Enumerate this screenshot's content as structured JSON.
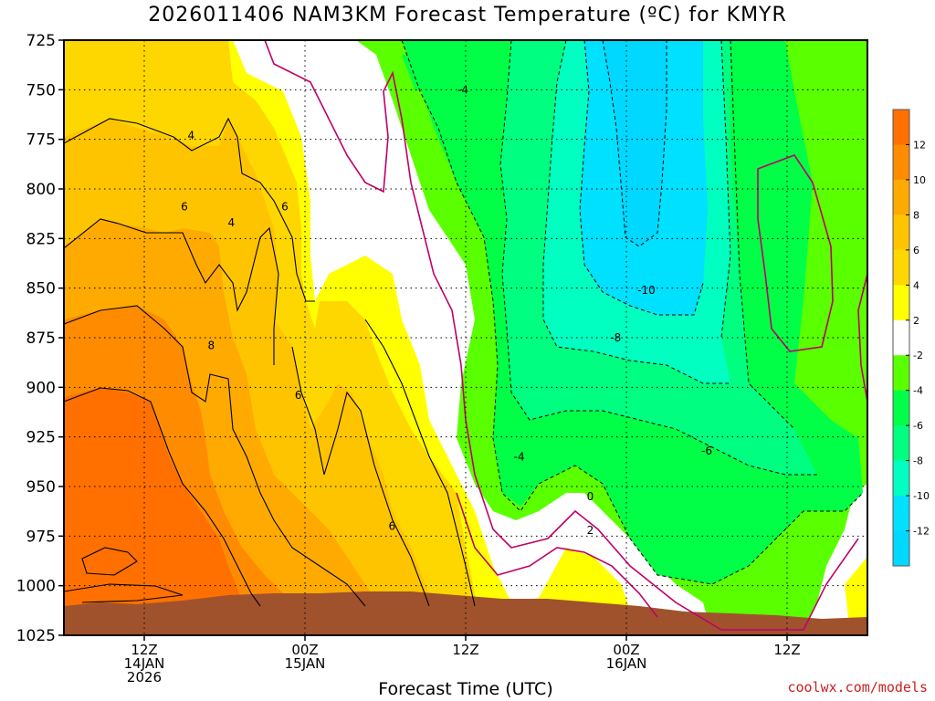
{
  "chart_data": {
    "type": "filled-contour",
    "title": "2026011406 NAM3KM Forecast Temperature (ºC) for KMYR",
    "xlabel": "Forecast Time (UTC)",
    "ylabel": "",
    "y_ticks": [
      "725",
      "750",
      "775",
      "800",
      "825",
      "850",
      "875",
      "900",
      "925",
      "950",
      "975",
      "1000",
      "1025"
    ],
    "y_range_hPa": [
      725,
      1025
    ],
    "x_ticks": [
      {
        "hour": 12,
        "lines": [
          "12Z",
          "14JAN",
          "2026"
        ]
      },
      {
        "hour": 24,
        "lines": [
          "00Z",
          "15JAN"
        ]
      },
      {
        "hour": 36,
        "lines": [
          "12Z"
        ]
      },
      {
        "hour": 48,
        "lines": [
          "00Z",
          "16JAN"
        ]
      },
      {
        "hour": 60,
        "lines": [
          "12Z"
        ]
      }
    ],
    "x_range_hours": [
      6,
      66
    ],
    "grid": true,
    "colorbar": {
      "position": "right",
      "labels": [
        "12",
        "10",
        "8",
        "6",
        "4",
        "2",
        "-2",
        "-4",
        "-6",
        "-8",
        "-10",
        "-12"
      ],
      "colors": [
        "#ff7000",
        "#ff8c00",
        "#ffaa00",
        "#ffc400",
        "#ffd700",
        "#ffff00",
        "#ffffff",
        "#5aff00",
        "#00ff46",
        "#00ff80",
        "#00ffc0",
        "#00e0ff",
        "#00d8ff"
      ]
    },
    "contour_labels": [
      {
        "text": "4",
        "hour": 15.5,
        "hPa": 773
      },
      {
        "text": "4",
        "hour": 18.5,
        "hPa": 817
      },
      {
        "text": "6",
        "hour": 15,
        "hPa": 809
      },
      {
        "text": "6",
        "hour": 22.5,
        "hPa": 809
      },
      {
        "text": "8",
        "hour": 17.0,
        "hPa": 879
      },
      {
        "text": "6",
        "hour": 23.5,
        "hPa": 904
      },
      {
        "text": "6",
        "hour": 30.5,
        "hPa": 970
      },
      {
        "text": "-4",
        "hour": 35.8,
        "hPa": 750
      },
      {
        "text": "-10",
        "hour": 49.5,
        "hPa": 851
      },
      {
        "text": "-8",
        "hour": 47.2,
        "hPa": 875
      },
      {
        "text": "-6",
        "hour": 54.0,
        "hPa": 932
      },
      {
        "text": "-4",
        "hour": 40.0,
        "hPa": 935
      },
      {
        "text": "0",
        "hour": 45.3,
        "hPa": 955
      },
      {
        "text": "2",
        "hour": 45.3,
        "hPa": 972
      }
    ]
  },
  "credit": "coolwx.com/models",
  "colors": {
    "terrain": "#a0522d",
    "zero_contour": "#c0006a"
  }
}
